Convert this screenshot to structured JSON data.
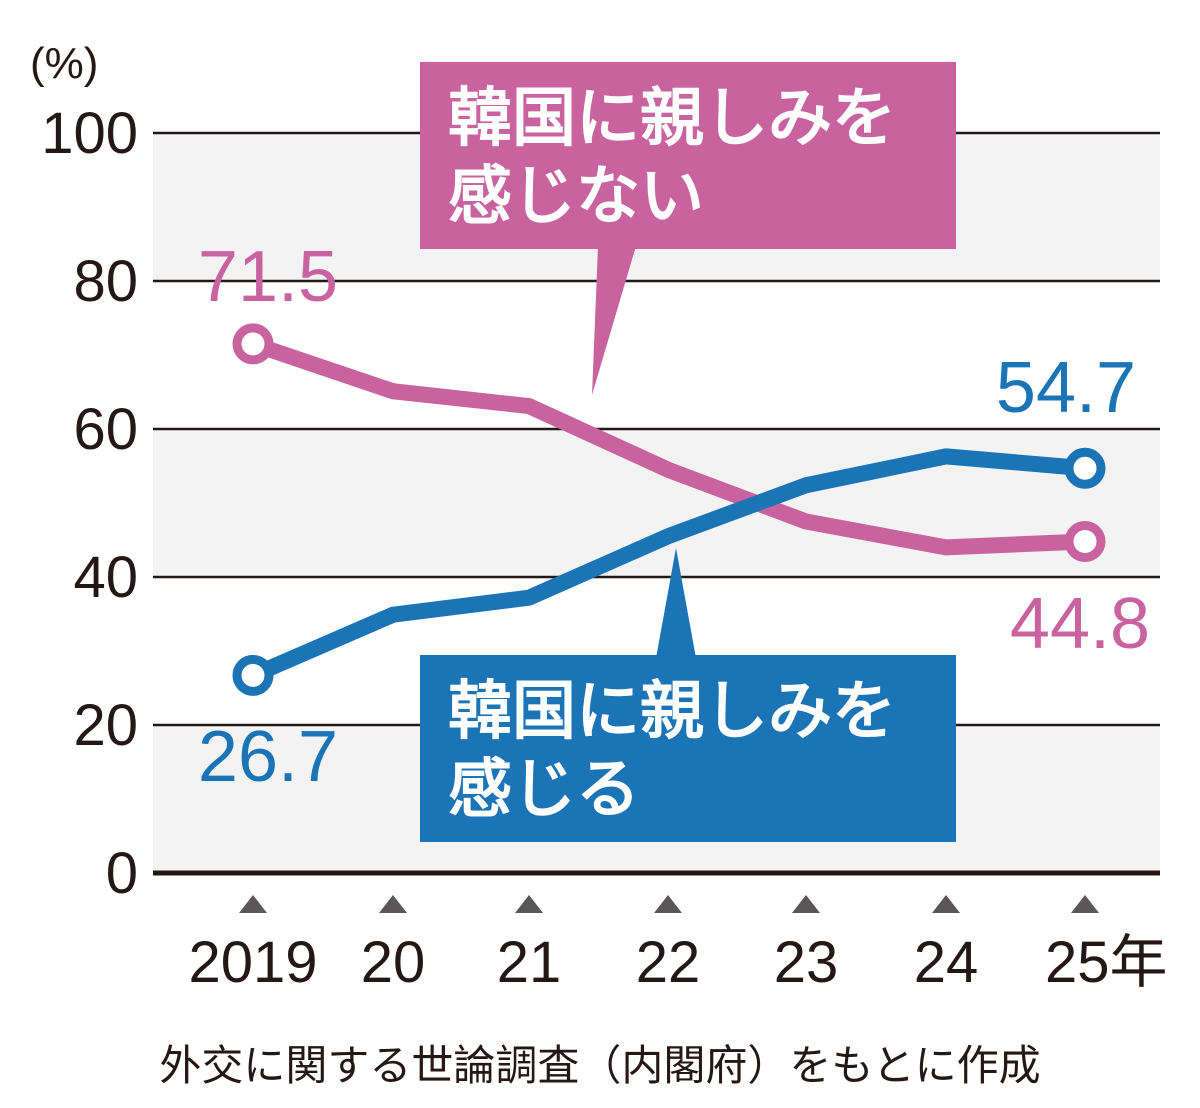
{
  "chart_data": {
    "type": "line",
    "unit_label": "(%)",
    "categories": [
      "2019",
      "20",
      "21",
      "22",
      "23",
      "24",
      "25年"
    ],
    "ylim": [
      0,
      100
    ],
    "y_ticks": [
      "0",
      "20",
      "40",
      "60",
      "80",
      "100"
    ],
    "grid": true,
    "series": [
      {
        "name_lines": [
          "韓国に親しみを",
          "感じない"
        ],
        "color": "#c9639f",
        "values": [
          71.5,
          65.1,
          63.1,
          54.5,
          47.5,
          44.0,
          44.8
        ],
        "first_label": "71.5",
        "last_label": "44.8"
      },
      {
        "name_lines": [
          "韓国に親しみを",
          "感じる"
        ],
        "color": "#1a74b5",
        "values": [
          26.7,
          34.9,
          37.2,
          45.5,
          52.4,
          56.3,
          54.7
        ],
        "first_label": "26.7",
        "last_label": "54.7"
      }
    ]
  },
  "source": "外交に関する世論調査（内閣府）をもとに作成",
  "colors": {
    "pink": "#c9639f",
    "blue": "#1a74b5",
    "band": "#f3f3f4",
    "ink": "#231815"
  }
}
